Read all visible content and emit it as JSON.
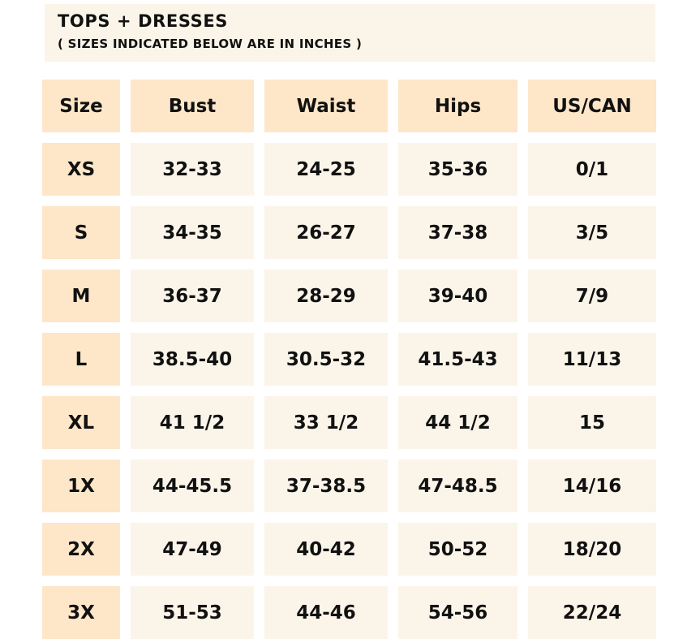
{
  "header": {
    "title": "TOPS + DRESSES",
    "subtitle": "( SIZES INDICATED BELOW ARE IN INCHES )"
  },
  "colors": {
    "header_cell": "#fde7c8",
    "value_cell": "#fbf4e9",
    "text": "#111111"
  },
  "table": {
    "columns": [
      "Size",
      "Bust",
      "Waist",
      "Hips",
      "US/CAN"
    ],
    "rows": [
      [
        "XS",
        "32-33",
        "24-25",
        "35-36",
        "0/1"
      ],
      [
        "S",
        "34-35",
        "26-27",
        "37-38",
        "3/5"
      ],
      [
        "M",
        "36-37",
        "28-29",
        "39-40",
        "7/9"
      ],
      [
        "L",
        "38.5-40",
        "30.5-32",
        "41.5-43",
        "11/13"
      ],
      [
        "XL",
        "41 1/2",
        "33 1/2",
        "44 1/2",
        "15"
      ],
      [
        "1X",
        "44-45.5",
        "37-38.5",
        "47-48.5",
        "14/16"
      ],
      [
        "2X",
        "47-49",
        "40-42",
        "50-52",
        "18/20"
      ],
      [
        "3X",
        "51-53",
        "44-46",
        "54-56",
        "22/24"
      ]
    ]
  }
}
